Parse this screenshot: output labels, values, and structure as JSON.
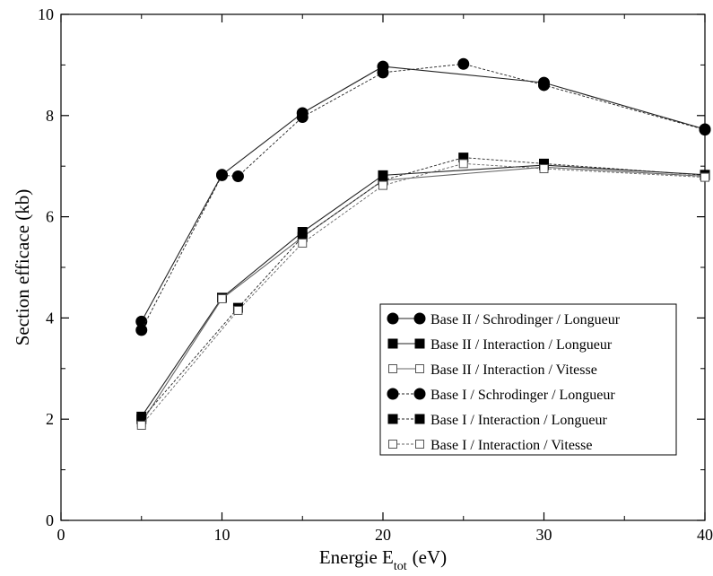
{
  "chart_data": {
    "type": "line",
    "xlabel": "Energie E",
    "xlabel_sub": "tot",
    "xlabel_unit": "(eV)",
    "ylabel": "Section efficace (kb)",
    "xlim": [
      0,
      40
    ],
    "ylim": [
      0,
      10
    ],
    "x_ticks": [
      0,
      10,
      20,
      30,
      40
    ],
    "y_ticks": [
      0,
      2,
      4,
      6,
      8,
      10
    ],
    "x_tick_labels": [
      "0",
      "10",
      "20",
      "30",
      "40"
    ],
    "y_tick_labels": [
      "0",
      "2",
      "4",
      "6",
      "8",
      "10"
    ],
    "grid": false,
    "legend_position": "bottom-right",
    "series": [
      {
        "name": "Base II / Schrodinger / Longueur",
        "marker": "circle",
        "line": "solid",
        "x": [
          5,
          10,
          15,
          20,
          30,
          40
        ],
        "y": [
          3.93,
          6.83,
          8.05,
          8.97,
          8.65,
          7.73
        ]
      },
      {
        "name": "Base II / Interaction / Longueur",
        "marker": "square",
        "line": "solid",
        "x": [
          5,
          10,
          15,
          20,
          30,
          40
        ],
        "y": [
          2.05,
          4.4,
          5.7,
          6.82,
          7.02,
          6.83
        ]
      },
      {
        "name": "Base II / Interaction / Vitesse",
        "marker": "square-open",
        "line": "solid",
        "x": [
          5,
          10,
          15,
          20,
          30,
          40
        ],
        "y": [
          1.93,
          4.38,
          5.6,
          6.72,
          6.98,
          6.8
        ]
      },
      {
        "name": "Base I / Schrodinger / Longueur",
        "marker": "circle",
        "line": "dashed",
        "x": [
          5,
          10,
          11,
          15,
          20,
          25,
          30,
          40
        ],
        "y": [
          3.76,
          6.82,
          6.8,
          7.97,
          8.85,
          9.02,
          8.6,
          7.72
        ]
      },
      {
        "name": "Base I / Interaction / Longueur",
        "marker": "square",
        "line": "dashed",
        "x": [
          5,
          11,
          15,
          20,
          25,
          30,
          40
        ],
        "y": [
          2.0,
          4.2,
          5.6,
          6.72,
          7.17,
          7.05,
          6.82
        ]
      },
      {
        "name": "Base I / Interaction / Vitesse",
        "marker": "square-open",
        "line": "dashed",
        "x": [
          5,
          11,
          15,
          20,
          25,
          30,
          40
        ],
        "y": [
          1.88,
          4.15,
          5.48,
          6.62,
          7.05,
          6.95,
          6.78
        ]
      }
    ]
  }
}
